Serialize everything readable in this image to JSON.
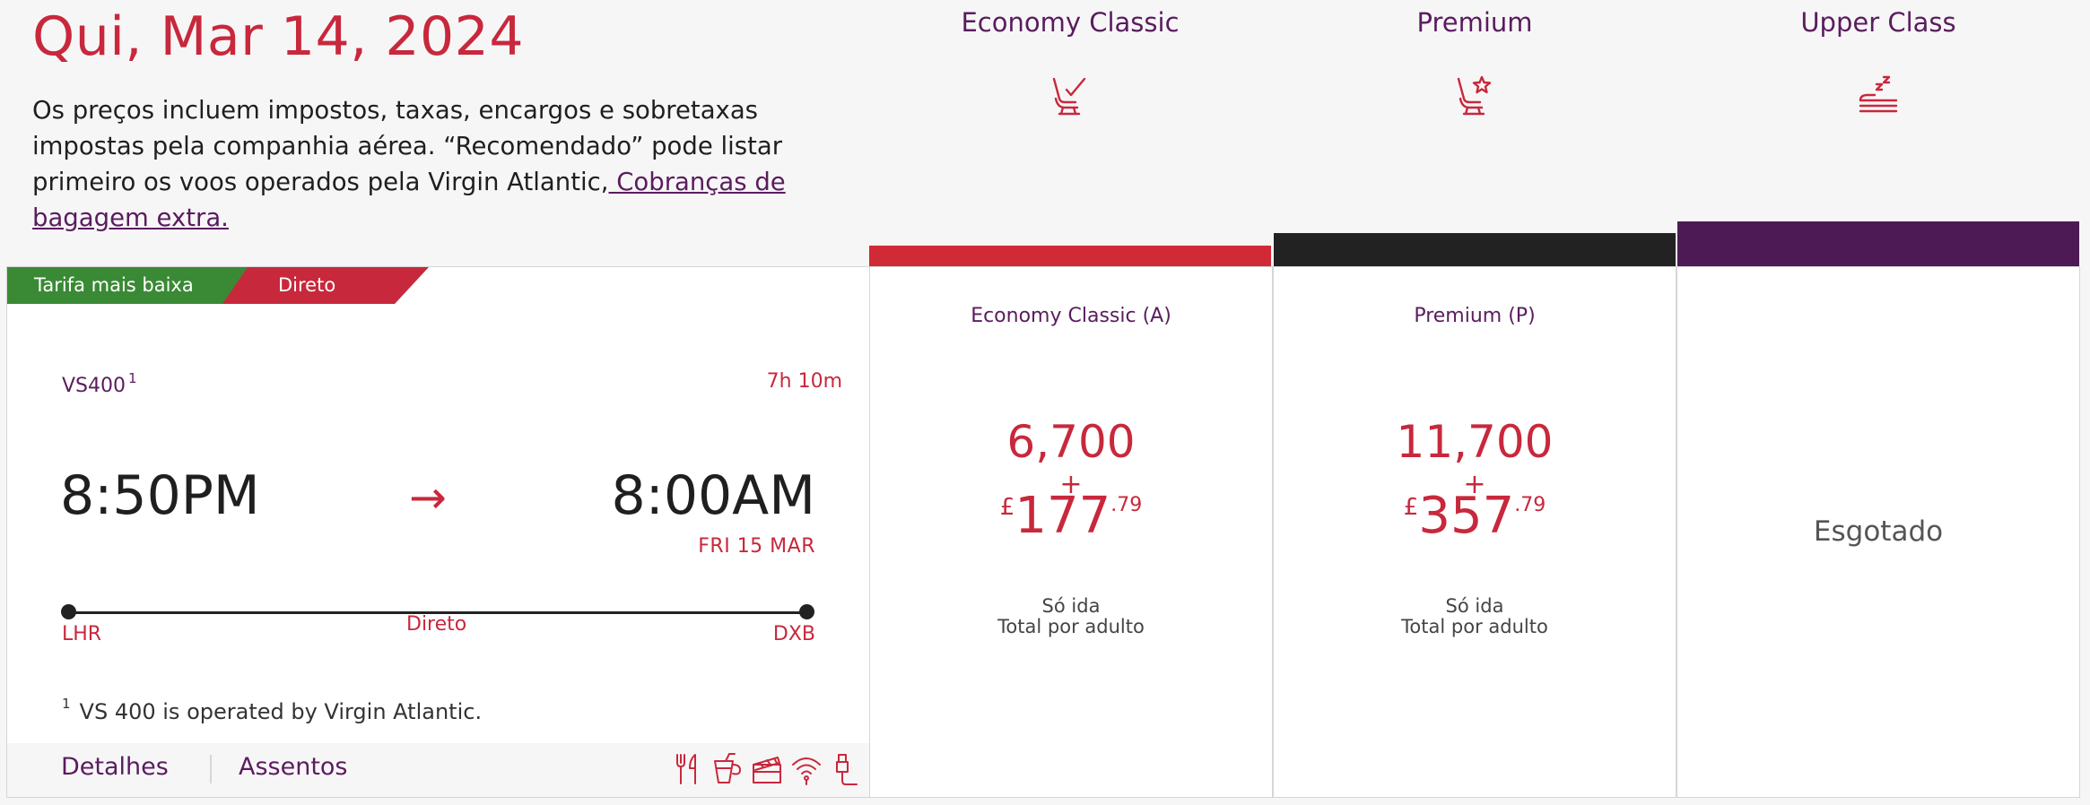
{
  "header": {
    "date_title": "Qui, Mar 14, 2024",
    "disclaimer_text": "Os preços incluem impostos, taxas, encargos e sobretaxas impostas pela companhia aérea. “Recomendado” pode listar primeiro os voos operados pela Virgin Atlantic,",
    "baggage_link": " Cobranças de bagagem extra."
  },
  "cabins": [
    {
      "name": "Economy Classic",
      "icon": "seat-check-icon",
      "color": "#cf2a36"
    },
    {
      "name": "Premium",
      "icon": "seat-star-icon",
      "color": "#222222"
    },
    {
      "name": "Upper Class",
      "icon": "bed-sleep-icon",
      "color": "#4e1a55"
    }
  ],
  "flight": {
    "tags": [
      "Tarifa mais baixa",
      "Direto"
    ],
    "tag_colors": [
      "#3a8a35",
      "#c8283c"
    ],
    "number": "VS400",
    "number_footnote_ref": "1",
    "duration": "7h 10m",
    "departure_time": "8:50PM",
    "arrow": "→",
    "arrival_time": "8:00AM",
    "arrival_date": "FRI 15 MAR",
    "origin": "LHR",
    "stops": "Direto",
    "destination": "DXB",
    "footnote_ref": "1",
    "footnote": "VS 400 is operated by Virgin Atlantic.",
    "details_link": "Detalhes",
    "seats_link": "Assentos",
    "amenities": [
      "cutlery-icon",
      "drink-icon",
      "entertainment-icon",
      "wifi-icon",
      "usb-power-icon"
    ]
  },
  "fares": [
    {
      "name": "Economy Classic (A)",
      "miles": "6,700",
      "plus": "+",
      "currency": "£",
      "price_whole": "177",
      "price_cents": ".79",
      "trip_type": "Só ida",
      "per_adult": "Total por adulto"
    },
    {
      "name": "Premium (P)",
      "miles": "11,700",
      "plus": "+",
      "currency": "£",
      "price_whole": "357",
      "price_cents": ".79",
      "trip_type": "Só ida",
      "per_adult": "Total por adulto"
    },
    {
      "status": "Esgotado"
    }
  ]
}
